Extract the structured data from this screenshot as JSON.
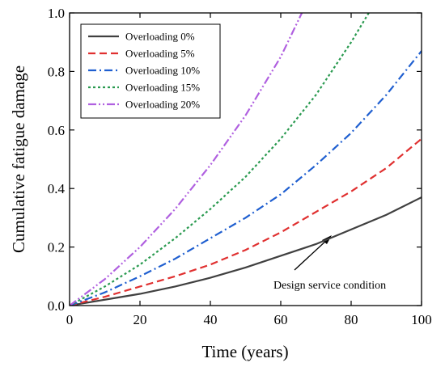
{
  "chart_data": {
    "type": "line",
    "xlabel": "Time (years)",
    "ylabel": "Cumulative fatigue damage",
    "annotation": "Design service condition",
    "xlim": [
      0,
      100
    ],
    "ylim": [
      0,
      1.0
    ],
    "xticks": [
      0,
      20,
      40,
      60,
      80,
      100
    ],
    "yticks": [
      {
        "value": 0,
        "label": "0.0"
      },
      {
        "value": 0.2,
        "label": "0.2"
      },
      {
        "value": 0.4,
        "label": "0.4"
      },
      {
        "value": 0.6,
        "label": "0.6"
      },
      {
        "value": 0.8,
        "label": "0.8"
      },
      {
        "value": 1.0,
        "label": "1.0"
      }
    ],
    "legend": "upper left",
    "series": [
      {
        "name": "Overloading 0%",
        "color": "#404040",
        "dash": "solid",
        "x": [
          0,
          10,
          20,
          30,
          40,
          50,
          60,
          70,
          80,
          90,
          100
        ],
        "values": [
          0,
          0.02,
          0.04,
          0.065,
          0.095,
          0.13,
          0.17,
          0.21,
          0.26,
          0.31,
          0.37
        ]
      },
      {
        "name": "Overloading 5%",
        "color": "#e03030",
        "dash": "dashed",
        "x": [
          0,
          10,
          20,
          30,
          40,
          50,
          60,
          70,
          80,
          90,
          100
        ],
        "values": [
          0,
          0.03,
          0.065,
          0.1,
          0.14,
          0.19,
          0.25,
          0.32,
          0.39,
          0.47,
          0.57
        ]
      },
      {
        "name": "Overloading 10%",
        "color": "#1f5fd0",
        "dash": "dashdot",
        "x": [
          0,
          10,
          20,
          30,
          40,
          50,
          60,
          70,
          80,
          90,
          100
        ],
        "values": [
          0,
          0.045,
          0.1,
          0.16,
          0.23,
          0.3,
          0.38,
          0.48,
          0.59,
          0.72,
          0.87
        ]
      },
      {
        "name": "Overloading 15%",
        "color": "#2a9a50",
        "dash": "dotted",
        "x": [
          0,
          10,
          20,
          30,
          40,
          50,
          60,
          70,
          80,
          85
        ],
        "values": [
          0,
          0.065,
          0.14,
          0.23,
          0.33,
          0.44,
          0.57,
          0.72,
          0.9,
          1.0
        ]
      },
      {
        "name": "Overloading 20%",
        "color": "#b060e0",
        "dash": "dashdotdot",
        "x": [
          0,
          10,
          20,
          30,
          40,
          50,
          60,
          66
        ],
        "values": [
          0,
          0.09,
          0.2,
          0.33,
          0.48,
          0.65,
          0.85,
          1.0
        ]
      }
    ]
  }
}
